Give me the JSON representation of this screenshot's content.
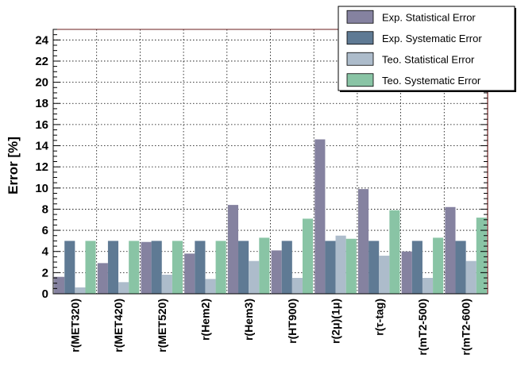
{
  "chart_data": {
    "type": "bar",
    "ylabel": "Error [%]",
    "ylim": [
      0,
      25
    ],
    "yticks": [
      0,
      2,
      4,
      6,
      8,
      10,
      12,
      14,
      16,
      18,
      20,
      22,
      24
    ],
    "grid": true,
    "legend_position": "top-right",
    "categories": [
      "r(MET320)",
      "r(MET420)",
      "r(MET520)",
      "r(Hem2)",
      "r(Hem3)",
      "r(HT900)",
      "r(2μ)(1μ)",
      "r(τ-tag)",
      "r(mT2-500)",
      "r(mT2-600)"
    ],
    "series": [
      {
        "name": "Exp. Statistical Error",
        "color": "#8582a0",
        "values": [
          1.6,
          2.9,
          4.9,
          3.8,
          8.4,
          4.1,
          14.6,
          9.9,
          4.0,
          8.2
        ]
      },
      {
        "name": "Exp. Systematic  Error",
        "color": "#5f7a94",
        "values": [
          5.0,
          5.0,
          5.0,
          5.0,
          5.0,
          5.0,
          5.0,
          5.0,
          5.0,
          5.0
        ]
      },
      {
        "name": "Teo. Statistical Error",
        "color": "#adbccb",
        "values": [
          0.6,
          1.1,
          1.8,
          1.4,
          3.1,
          1.5,
          5.5,
          3.6,
          1.5,
          3.1
        ]
      },
      {
        "name": "Teo. Systematic  Error",
        "color": "#89c4a5",
        "values": [
          5.0,
          5.0,
          5.0,
          5.0,
          5.3,
          7.1,
          5.2,
          7.9,
          5.3,
          7.2
        ]
      }
    ]
  }
}
